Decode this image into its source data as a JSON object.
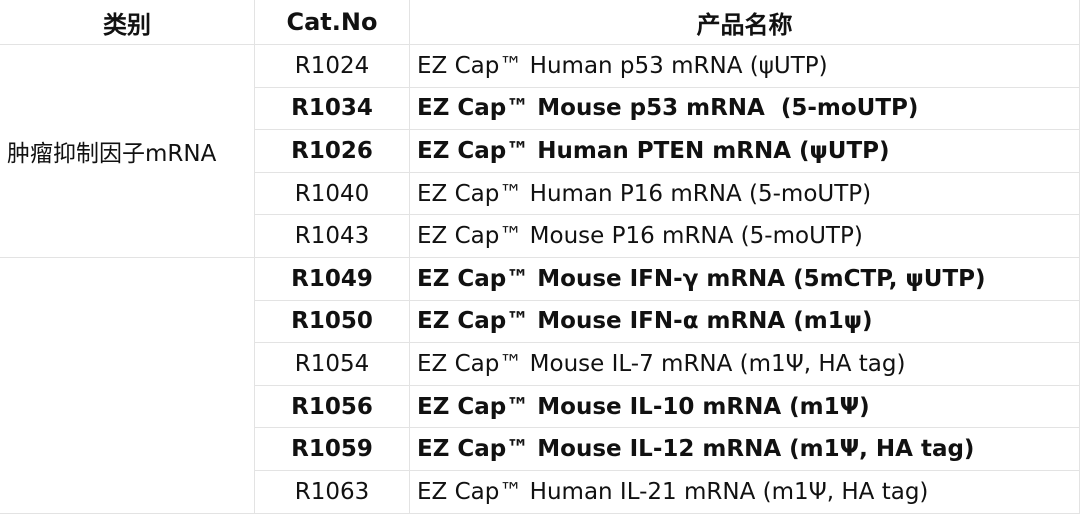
{
  "table": {
    "header": [
      "类别",
      "Cat.No",
      "产品名称"
    ],
    "groups": [
      {
        "category": "肿瘤抑制因子mRNA",
        "rows": [
          {
            "cat": "R1024",
            "name": "EZ Cap™ Human p53 mRNA (ψUTP)",
            "bold": false
          },
          {
            "cat": "R1034",
            "name": "EZ Cap™ Mouse p53 mRNA  (5-moUTP)",
            "bold": true
          },
          {
            "cat": "R1026",
            "name": "EZ Cap™ Human PTEN mRNA (ψUTP)",
            "bold": true
          },
          {
            "cat": "R1040",
            "name": "EZ Cap™ Human P16 mRNA (5-moUTP)",
            "bold": false
          },
          {
            "cat": "R1043",
            "name": "EZ Cap™ Mouse P16 mRNA (5-moUTP)",
            "bold": false
          }
        ]
      },
      {
        "rows": [
          {
            "cat": "R1049",
            "name": "EZ Cap™ Mouse IFN-γ mRNA (5mCTP, ψUTP)",
            "bold": true
          },
          {
            "cat": "R1050",
            "name": "EZ Cap™ Mouse IFN-α mRNA (m1ψ)",
            "bold": true
          },
          {
            "cat": "R1054",
            "name": "EZ Cap™ Mouse IL-7 mRNA (m1Ψ, HA tag)",
            "bold": false
          },
          {
            "cat": "R1056",
            "name": "EZ Cap™ Mouse IL-10 mRNA (m1Ψ)",
            "bold": true
          },
          {
            "cat": "R1059",
            "name": "EZ Cap™ Mouse IL-12 mRNA (m1Ψ, HA tag)",
            "bold": true
          },
          {
            "cat": "R1063",
            "name": "EZ Cap™ Human IL-21 mRNA (m1Ψ, HA tag)",
            "bold": false
          }
        ]
      }
    ]
  }
}
